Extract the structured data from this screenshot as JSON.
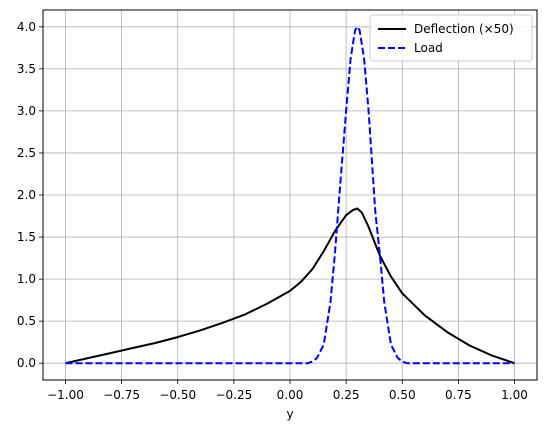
{
  "chart_data": {
    "type": "line",
    "title": "",
    "xlabel": "y",
    "ylabel": "",
    "xlim": [
      -1.1,
      1.1
    ],
    "ylim": [
      -0.2,
      4.2
    ],
    "x_ticks": [
      -1.0,
      -0.75,
      -0.5,
      -0.25,
      0.0,
      0.25,
      0.5,
      0.75,
      1.0
    ],
    "x_tick_labels": [
      "−1.00",
      "−0.75",
      "−0.50",
      "−0.25",
      "0.00",
      "0.25",
      "0.50",
      "0.75",
      "1.00"
    ],
    "y_ticks": [
      0.0,
      0.5,
      1.0,
      1.5,
      2.0,
      2.5,
      3.0,
      3.5,
      4.0
    ],
    "y_tick_labels": [
      "0.0",
      "0.5",
      "1.0",
      "1.5",
      "2.0",
      "2.5",
      "3.0",
      "3.5",
      "4.0"
    ],
    "grid": true,
    "legend_position": "top-right",
    "series": [
      {
        "name": "Deflection (×50)",
        "color": "#000000",
        "style": "solid",
        "x": [
          -1.0,
          -0.9,
          -0.8,
          -0.7,
          -0.6,
          -0.5,
          -0.4,
          -0.3,
          -0.2,
          -0.1,
          0.0,
          0.05,
          0.1,
          0.15,
          0.2,
          0.25,
          0.28,
          0.3,
          0.32,
          0.35,
          0.4,
          0.45,
          0.5,
          0.6,
          0.7,
          0.8,
          0.9,
          1.0
        ],
        "y": [
          0.0,
          0.06,
          0.12,
          0.18,
          0.24,
          0.31,
          0.39,
          0.48,
          0.58,
          0.71,
          0.86,
          0.97,
          1.12,
          1.33,
          1.57,
          1.76,
          1.82,
          1.84,
          1.79,
          1.62,
          1.28,
          1.03,
          0.83,
          0.57,
          0.37,
          0.21,
          0.09,
          0.0
        ]
      },
      {
        "name": "Load",
        "color": "#0000ff",
        "style": "dashed",
        "x": [
          -1.0,
          0.0,
          0.08,
          0.1,
          0.12,
          0.15,
          0.18,
          0.2,
          0.22,
          0.25,
          0.27,
          0.29,
          0.3,
          0.31,
          0.33,
          0.35,
          0.38,
          0.4,
          0.42,
          0.45,
          0.48,
          0.5,
          0.52,
          1.0
        ],
        "y": [
          0.0,
          0.0,
          0.0,
          0.02,
          0.06,
          0.22,
          0.72,
          1.3,
          2.0,
          3.0,
          3.62,
          3.96,
          4.0,
          3.96,
          3.62,
          3.0,
          1.8,
          1.3,
          0.72,
          0.22,
          0.06,
          0.02,
          0.0,
          0.0
        ]
      }
    ]
  }
}
